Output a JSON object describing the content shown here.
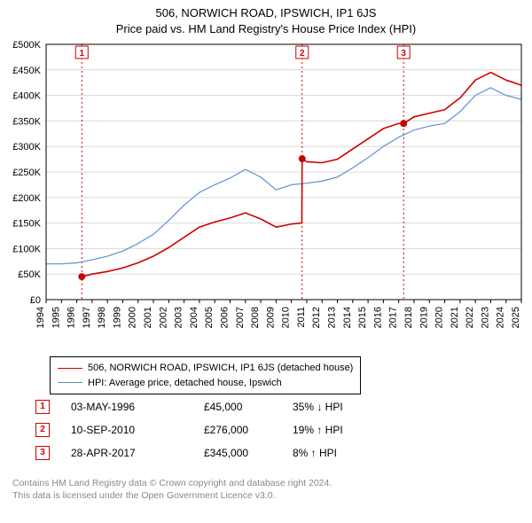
{
  "title_line1": "506, NORWICH ROAD, IPSWICH, IP1 6JS",
  "title_line2": "Price paid vs. HM Land Registry's House Price Index (HPI)",
  "chart": {
    "type": "line",
    "background_color": "#ffffff",
    "plot_border_color": "#000000",
    "grid_color": "#d9d9d9",
    "x": {
      "min": 1994,
      "max": 2025,
      "ticks": [
        1994,
        1995,
        1996,
        1997,
        1998,
        1999,
        2000,
        2001,
        2002,
        2003,
        2004,
        2005,
        2006,
        2007,
        2008,
        2009,
        2010,
        2011,
        2012,
        2013,
        2014,
        2015,
        2016,
        2017,
        2018,
        2019,
        2020,
        2021,
        2022,
        2023,
        2024,
        2025
      ],
      "tick_label_fontsize": 11,
      "tick_label_rotation": -90
    },
    "y": {
      "min": 0,
      "max": 500000,
      "step": 50000,
      "ticks": [
        0,
        50000,
        100000,
        150000,
        200000,
        250000,
        300000,
        350000,
        400000,
        450000,
        500000
      ],
      "tick_labels": [
        "£0",
        "£50K",
        "£100K",
        "£150K",
        "£200K",
        "£250K",
        "£300K",
        "£350K",
        "£400K",
        "£450K",
        "£500K"
      ],
      "tick_label_fontsize": 11
    },
    "vlines": [
      {
        "x": 1996.33,
        "label": "1",
        "color": "#d00000",
        "dash": "2,3"
      },
      {
        "x": 2010.7,
        "label": "2",
        "color": "#d00000",
        "dash": "2,3"
      },
      {
        "x": 2017.32,
        "label": "3",
        "color": "#d00000",
        "dash": "2,3"
      }
    ],
    "series": [
      {
        "name": "506, NORWICH ROAD, IPSWICH, IP1 6JS (detached house)",
        "color": "#d00000",
        "line_width": 1.6,
        "points": [
          [
            1996.33,
            45000
          ],
          [
            1997,
            50000
          ],
          [
            1998,
            55000
          ],
          [
            1999,
            62000
          ],
          [
            2000,
            72000
          ],
          [
            2001,
            85000
          ],
          [
            2002,
            102000
          ],
          [
            2003,
            122000
          ],
          [
            2004,
            142000
          ],
          [
            2005,
            152000
          ],
          [
            2006,
            160000
          ],
          [
            2007,
            170000
          ],
          [
            2008,
            158000
          ],
          [
            2009,
            142000
          ],
          [
            2010,
            148000
          ],
          [
            2010.68,
            150000
          ],
          [
            2010.7,
            276000
          ],
          [
            2011,
            270000
          ],
          [
            2012,
            268000
          ],
          [
            2013,
            275000
          ],
          [
            2014,
            295000
          ],
          [
            2015,
            315000
          ],
          [
            2016,
            335000
          ],
          [
            2017,
            345000
          ],
          [
            2017.32,
            345000
          ],
          [
            2018,
            358000
          ],
          [
            2019,
            365000
          ],
          [
            2020,
            372000
          ],
          [
            2021,
            395000
          ],
          [
            2022,
            430000
          ],
          [
            2023,
            445000
          ],
          [
            2024,
            430000
          ],
          [
            2025,
            420000
          ]
        ],
        "markers": [
          {
            "x": 1996.33,
            "y": 45000
          },
          {
            "x": 2010.7,
            "y": 276000
          },
          {
            "x": 2017.32,
            "y": 345000
          }
        ]
      },
      {
        "name": "HPI: Average price, detached house, Ipswich",
        "color": "#5b8fd6",
        "line_width": 1.2,
        "points": [
          [
            1994,
            70000
          ],
          [
            1995,
            70000
          ],
          [
            1996,
            72000
          ],
          [
            1997,
            78000
          ],
          [
            1998,
            85000
          ],
          [
            1999,
            95000
          ],
          [
            2000,
            110000
          ],
          [
            2001,
            128000
          ],
          [
            2002,
            155000
          ],
          [
            2003,
            185000
          ],
          [
            2004,
            210000
          ],
          [
            2005,
            225000
          ],
          [
            2006,
            238000
          ],
          [
            2007,
            255000
          ],
          [
            2008,
            240000
          ],
          [
            2009,
            215000
          ],
          [
            2010,
            225000
          ],
          [
            2011,
            228000
          ],
          [
            2012,
            232000
          ],
          [
            2013,
            240000
          ],
          [
            2014,
            258000
          ],
          [
            2015,
            278000
          ],
          [
            2016,
            300000
          ],
          [
            2017,
            318000
          ],
          [
            2018,
            332000
          ],
          [
            2019,
            340000
          ],
          [
            2020,
            345000
          ],
          [
            2021,
            368000
          ],
          [
            2022,
            400000
          ],
          [
            2023,
            415000
          ],
          [
            2024,
            400000
          ],
          [
            2025,
            392000
          ]
        ]
      }
    ]
  },
  "legend": {
    "items": [
      {
        "color": "#d00000",
        "width": 1.8,
        "label": "506, NORWICH ROAD, IPSWICH, IP1 6JS (detached house)"
      },
      {
        "color": "#5b8fd6",
        "width": 1.2,
        "label": "HPI: Average price, detached house, Ipswich"
      }
    ]
  },
  "marker_rows": [
    {
      "n": "1",
      "date": "03-MAY-1996",
      "price": "£45,000",
      "delta": "35% ↓ HPI"
    },
    {
      "n": "2",
      "date": "10-SEP-2010",
      "price": "£276,000",
      "delta": "19% ↑ HPI"
    },
    {
      "n": "3",
      "date": "28-APR-2017",
      "price": "£345,000",
      "delta": "8% ↑ HPI"
    }
  ],
  "footer_line1": "Contains HM Land Registry data © Crown copyright and database right 2024.",
  "footer_line2": "This data is licensed under the Open Government Licence v3.0."
}
